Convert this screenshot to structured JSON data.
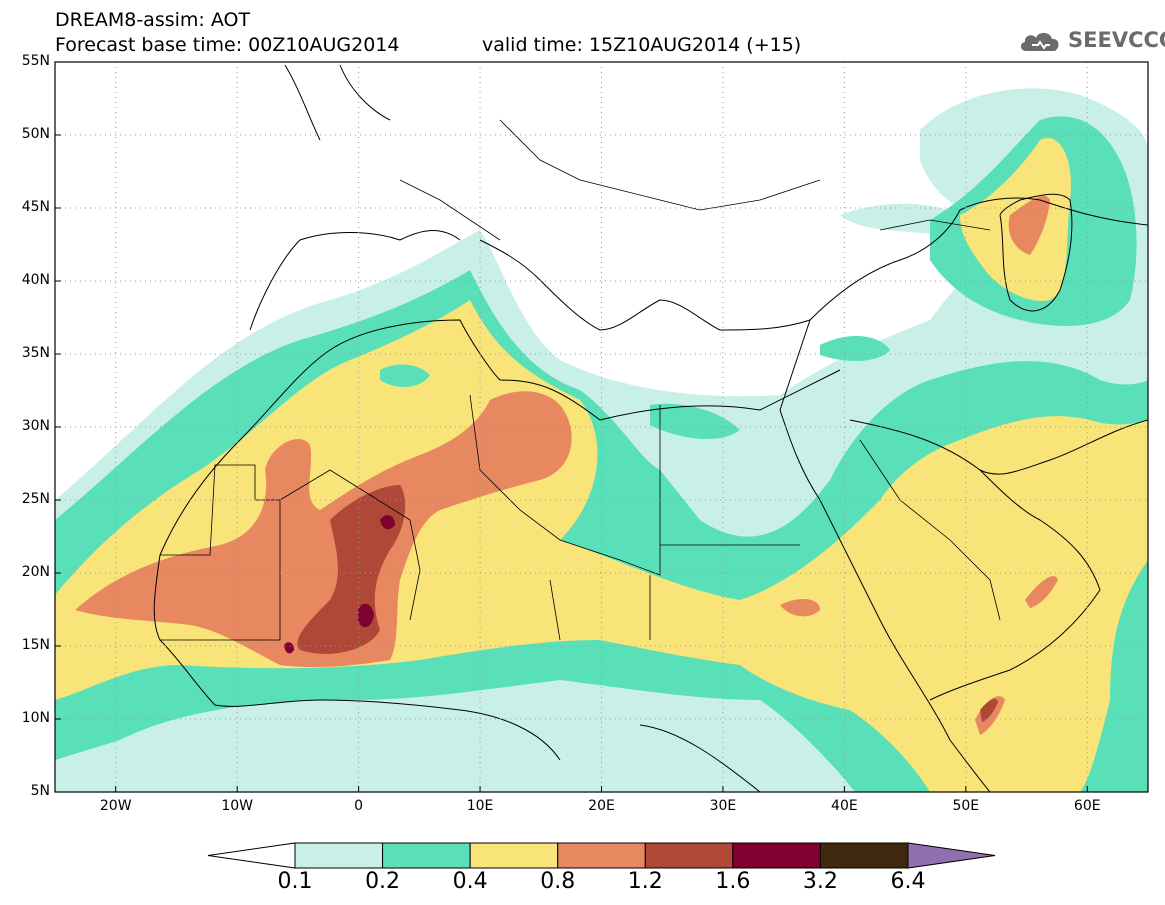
{
  "header": {
    "title": "DREAM8-assim: AOT",
    "base_time": "Forecast base time: 00Z10AUG2014",
    "valid_time": "valid time: 15Z10AUG2014 (+15)"
  },
  "logo": {
    "text": "SEEVCCC",
    "icon": "cloud-icon",
    "color": "#6b6b6b"
  },
  "axes": {
    "lat_labels": [
      "55N",
      "50N",
      "45N",
      "40N",
      "35N",
      "30N",
      "25N",
      "20N",
      "15N",
      "10N",
      "5N"
    ],
    "lat_values": [
      55,
      50,
      45,
      40,
      35,
      30,
      25,
      20,
      15,
      10,
      5
    ],
    "lon_labels": [
      "20W",
      "10W",
      "0",
      "10E",
      "20E",
      "30E",
      "40E",
      "50E",
      "60E"
    ],
    "lon_values": [
      -20,
      -10,
      0,
      10,
      20,
      30,
      40,
      50,
      60
    ],
    "lon_range": [
      -25,
      65
    ],
    "lat_range": [
      5,
      55
    ],
    "grid": "dotted"
  },
  "colorbar": {
    "labels": [
      "0.1",
      "0.2",
      "0.4",
      "0.8",
      "1.2",
      "1.6",
      "3.2",
      "6.4"
    ],
    "colors": [
      "#ffffff",
      "#c8f0e8",
      "#5ae0b8",
      "#f8e478",
      "#e88860",
      "#b04838",
      "#800030",
      "#402810",
      "#9070b0"
    ]
  }
}
